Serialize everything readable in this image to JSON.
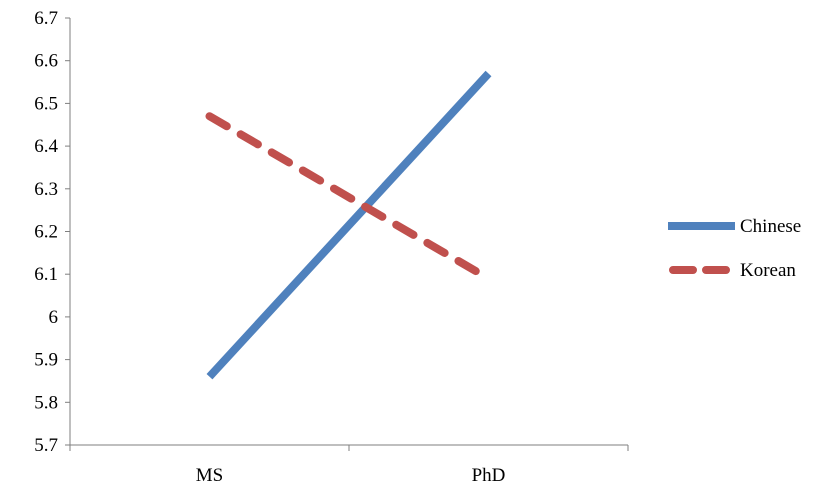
{
  "chart_data": {
    "type": "line",
    "title": "",
    "xlabel": "",
    "ylabel": "",
    "categories": [
      "MS",
      "PhD"
    ],
    "ylim": [
      5.7,
      6.7
    ],
    "yticks": [
      "5.7",
      "5.8",
      "5.9",
      "6",
      "6.1",
      "6.2",
      "6.3",
      "6.4",
      "6.5",
      "6.6",
      "6.7"
    ],
    "grid": false,
    "legend_position": "right",
    "series": [
      {
        "name": "Chinese",
        "values": [
          5.86,
          6.57
        ],
        "color": "#4f81bd",
        "style": "solid"
      },
      {
        "name": "Korean",
        "values": [
          6.47,
          6.09
        ],
        "color": "#c0504d",
        "style": "dashed"
      }
    ]
  }
}
